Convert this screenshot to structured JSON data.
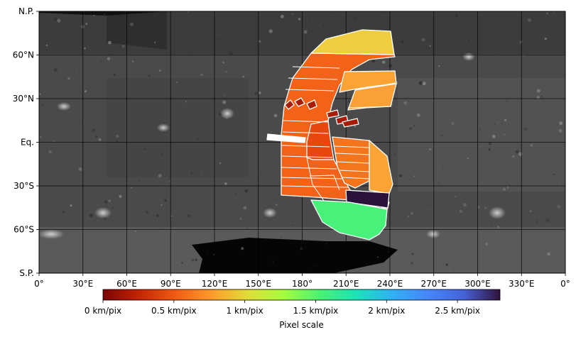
{
  "map": {
    "type": "equirectangular",
    "x_tick_labels": [
      "0°",
      "30°E",
      "60°E",
      "90°E",
      "120°E",
      "150°E",
      "180°",
      "210°E",
      "240°E",
      "270°E",
      "300°E",
      "330°E",
      "0°"
    ],
    "y_tick_labels": [
      "N.P.",
      "60°N",
      "30°N",
      "Eq.",
      "30°S",
      "60°S",
      "S.P."
    ],
    "grid": true
  },
  "colorbar": {
    "label": "Pixel scale",
    "tick_labels": [
      "0 km/pix",
      "0.5 km/pix",
      "1 km/pix",
      "1.5 km/pix",
      "2 km/pix",
      "2.5 km/pix"
    ],
    "colormap": "turbo",
    "range": [
      0,
      2.8
    ],
    "stops": [
      "#7a0403",
      "#c42503",
      "#f05b12",
      "#fe9b2d",
      "#e1dd37",
      "#a4fc3c",
      "#4bf173",
      "#1ae4b6",
      "#30b1f3",
      "#4686fb",
      "#4662d7",
      "#30123b"
    ]
  },
  "colors": {
    "background": "#ffffff",
    "polygon_stroke": "#ffffff"
  }
}
